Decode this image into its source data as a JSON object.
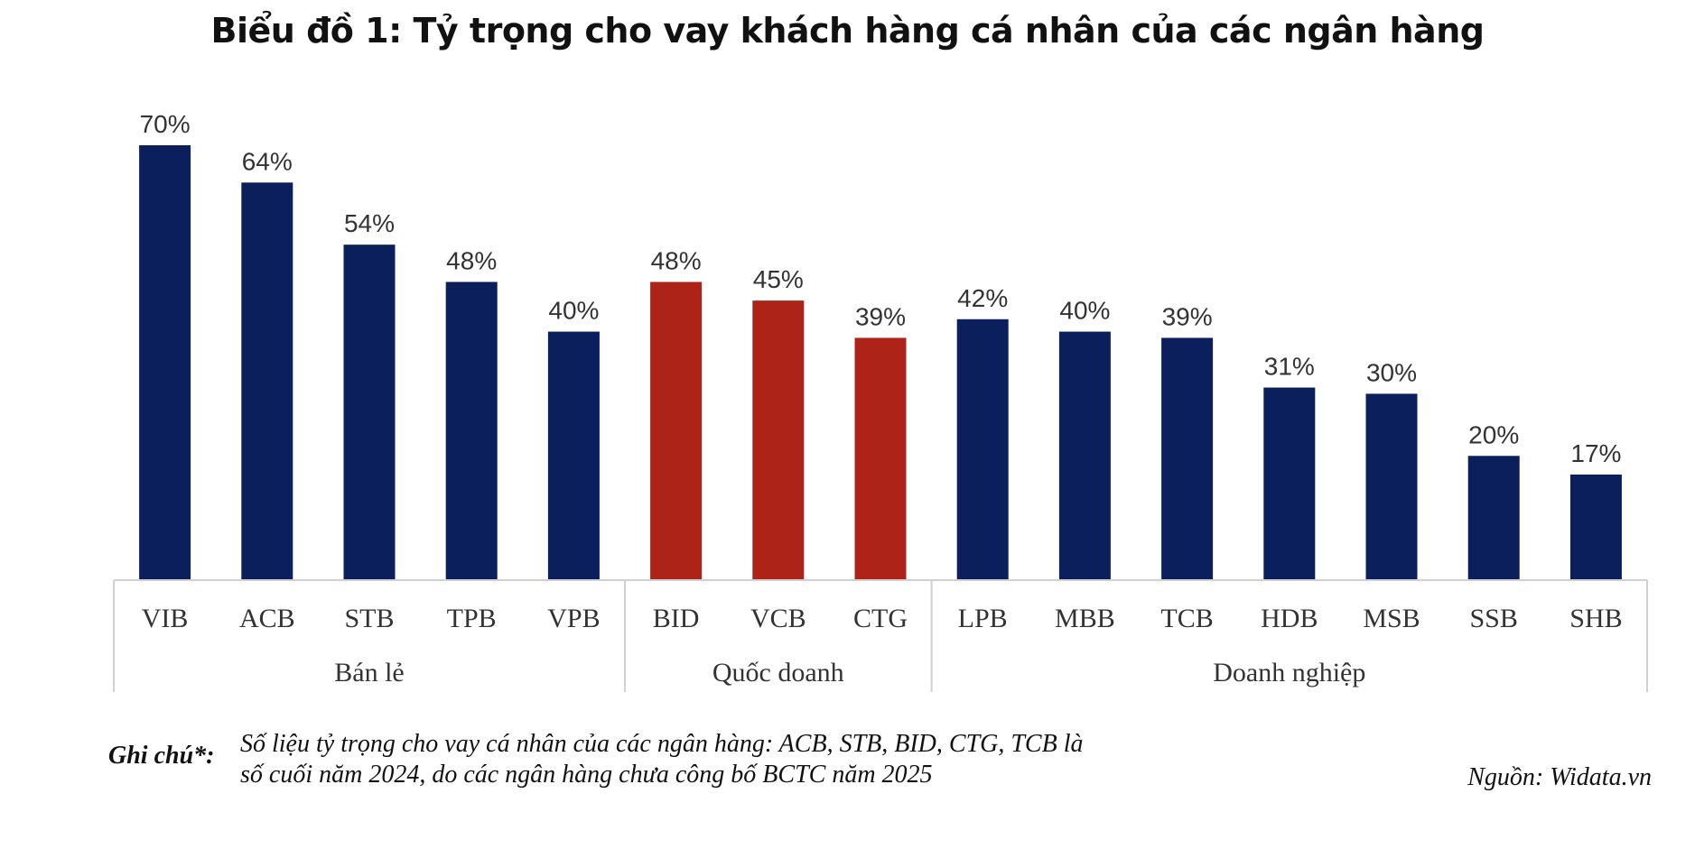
{
  "chart_data": {
    "type": "bar",
    "title": "Biểu đồ 1: Tỷ trọng cho vay khách hàng cá nhân của các ngân hàng",
    "categories": [
      "VIB",
      "ACB",
      "STB",
      "TPB",
      "VPB",
      "BID",
      "VCB",
      "CTG",
      "LPB",
      "MBB",
      "TCB",
      "HDB",
      "MSB",
      "SSB",
      "SHB"
    ],
    "values": [
      70,
      64,
      54,
      48,
      40,
      48,
      45,
      39,
      42,
      40,
      39,
      31,
      30,
      20,
      17
    ],
    "value_labels": [
      "70%",
      "64%",
      "54%",
      "48%",
      "40%",
      "48%",
      "45%",
      "39%",
      "42%",
      "40%",
      "39%",
      "31%",
      "30%",
      "20%",
      "17%"
    ],
    "groups": [
      {
        "name": "Bán lẻ",
        "count": 5,
        "color": "#0b1f5c"
      },
      {
        "name": "Quốc doanh",
        "count": 3,
        "color": "#ad2318"
      },
      {
        "name": "Doanh nghiệp",
        "count": 7,
        "color": "#0b1f5c"
      }
    ],
    "ylim": [
      0,
      70
    ],
    "grid": false
  },
  "note": {
    "label": "Ghi chú*:",
    "line1": "Số liệu tỷ trọng cho vay cá nhân của các ngân hàng: ACB, STB, BID, CTG, TCB là",
    "line2": "số cuối năm 2024, do các ngân hàng chưa công bố BCTC năm 2025"
  },
  "source": "Nguồn: Widata.vn"
}
